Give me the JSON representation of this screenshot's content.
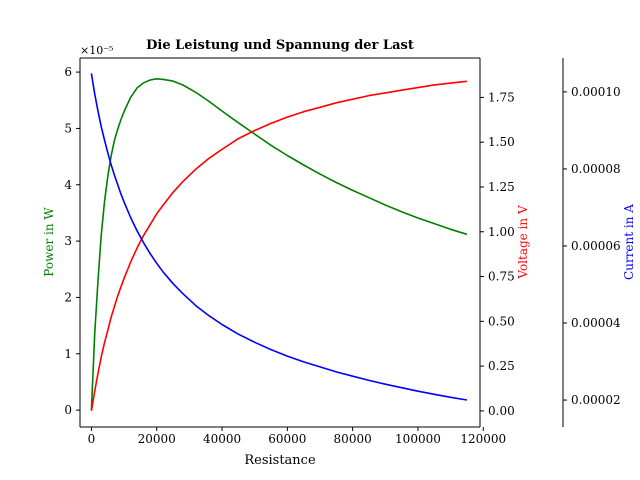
{
  "chart_data": {
    "type": "line",
    "title": "Die Leistung und Spannung der Last",
    "xlabel": "Resistance",
    "x_ticks": [
      "0",
      "20000",
      "40000",
      "60000",
      "80000",
      "100000",
      "120000"
    ],
    "xlim": [
      -3500,
      119000
    ],
    "axes": [
      {
        "id": "power",
        "label": "Power in W",
        "color": "#008000",
        "position": "left",
        "ylim": [
          -3e-06,
          6.25e-05
        ],
        "offset_text": "×10⁻⁵",
        "tick_values": [
          0,
          1e-05,
          2e-05,
          3e-05,
          4e-05,
          5e-05,
          6e-05
        ],
        "tick_labels": [
          "0",
          "1",
          "2",
          "3",
          "4",
          "5",
          "6"
        ]
      },
      {
        "id": "voltage",
        "label": "Voltage in V",
        "color": "#ff0000",
        "position": "right",
        "ylim": [
          -0.09,
          1.97
        ],
        "tick_values": [
          0,
          0.25,
          0.5,
          0.75,
          1.0,
          1.25,
          1.5,
          1.75
        ],
        "tick_labels": [
          "0.00",
          "0.25",
          "0.50",
          "0.75",
          "1.00",
          "1.25",
          "1.50",
          "1.75"
        ]
      },
      {
        "id": "current",
        "label": "Current in A",
        "color": "#0000ff",
        "position": "right-offset",
        "ylim": [
          1.3e-05,
          0.0001088
        ],
        "tick_values": [
          2e-05,
          4e-05,
          6e-05,
          8e-05,
          0.0001
        ],
        "tick_labels": [
          "0.00002",
          "0.00004",
          "0.00006",
          "0.00008",
          "0.00010"
        ]
      }
    ],
    "x": [
      0,
      1000,
      2000,
      3000,
      4000,
      5000,
      6000,
      7000,
      8000,
      9000,
      10000,
      12000,
      14000,
      16000,
      18000,
      20000,
      22000,
      25000,
      28000,
      32000,
      36000,
      40000,
      45000,
      50000,
      55000,
      60000,
      65000,
      70000,
      75000,
      80000,
      85000,
      90000,
      95000,
      100000,
      105000,
      110000,
      115000
    ],
    "series": [
      {
        "name": "Power",
        "axis": "power",
        "color": "#008000",
        "values": [
          0,
          1.35e-05,
          2.3e-05,
          3.1e-05,
          3.7e-05,
          4.15e-05,
          4.5e-05,
          4.78e-05,
          4.98e-05,
          5.15e-05,
          5.3e-05,
          5.55e-05,
          5.72e-05,
          5.81e-05,
          5.86e-05,
          5.88e-05,
          5.87e-05,
          5.84e-05,
          5.77e-05,
          5.64e-05,
          5.48e-05,
          5.31e-05,
          5.1e-05,
          4.9e-05,
          4.7e-05,
          4.52e-05,
          4.35e-05,
          4.19e-05,
          4.04e-05,
          3.9e-05,
          3.77e-05,
          3.64e-05,
          3.52e-05,
          3.41e-05,
          3.31e-05,
          3.21e-05,
          3.12e-05
        ]
      },
      {
        "name": "Voltage",
        "axis": "voltage",
        "color": "#ff0000",
        "values": [
          0,
          0.11,
          0.21,
          0.3,
          0.38,
          0.45,
          0.52,
          0.58,
          0.64,
          0.69,
          0.74,
          0.83,
          0.91,
          0.98,
          1.04,
          1.1,
          1.15,
          1.22,
          1.28,
          1.35,
          1.41,
          1.46,
          1.52,
          1.565,
          1.605,
          1.64,
          1.67,
          1.695,
          1.72,
          1.74,
          1.76,
          1.775,
          1.79,
          1.805,
          1.82,
          1.83,
          1.84
        ]
      },
      {
        "name": "Current",
        "axis": "current",
        "color": "#0000ff",
        "values": [
          0.0001048,
          9.95e-05,
          9.5e-05,
          9.1e-05,
          8.75e-05,
          8.42e-05,
          8.12e-05,
          7.85e-05,
          7.6e-05,
          7.36e-05,
          7.14e-05,
          6.74e-05,
          6.39e-05,
          6.08e-05,
          5.8e-05,
          5.55e-05,
          5.32e-05,
          5.02e-05,
          4.76e-05,
          4.45e-05,
          4.19e-05,
          3.96e-05,
          3.71e-05,
          3.5e-05,
          3.31e-05,
          3.14e-05,
          2.99e-05,
          2.86e-05,
          2.73e-05,
          2.62e-05,
          2.51e-05,
          2.41e-05,
          2.32e-05,
          2.23e-05,
          2.15e-05,
          2.07e-05,
          2e-05
        ]
      }
    ],
    "grid": false,
    "legend": "none"
  }
}
